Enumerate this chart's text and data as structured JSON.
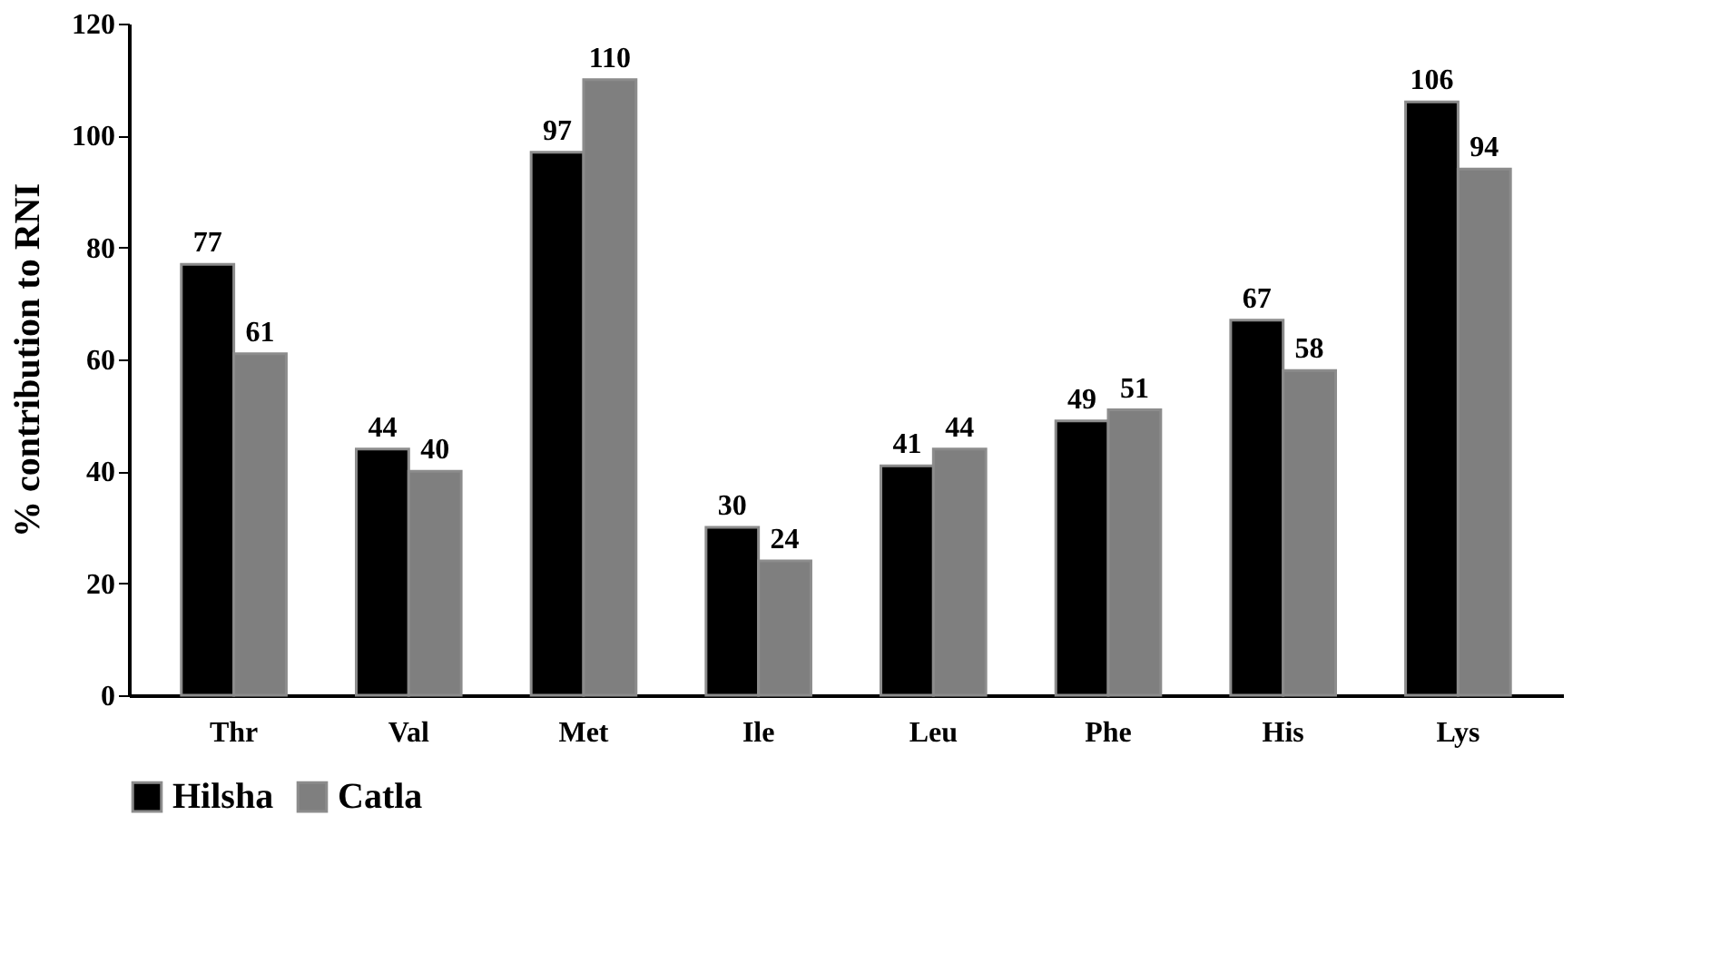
{
  "chart_data": {
    "type": "bar",
    "ylabel": "% contribution to RNI",
    "categories": [
      "Thr",
      "Val",
      "Met",
      "Ile",
      "Leu",
      "Phe",
      "His",
      "Lys"
    ],
    "series": [
      {
        "name": "Hilsha",
        "color": "#000000",
        "values": [
          77,
          44,
          97,
          30,
          41,
          49,
          67,
          106
        ]
      },
      {
        "name": "Catla",
        "color": "#7f7f7f",
        "values": [
          61,
          40,
          110,
          24,
          44,
          51,
          58,
          94
        ]
      }
    ],
    "ylim": [
      0,
      120
    ],
    "yticks": [
      0,
      20,
      40,
      60,
      80,
      100,
      120
    ],
    "grid": false,
    "legend": "bottom",
    "data_labels": true
  }
}
